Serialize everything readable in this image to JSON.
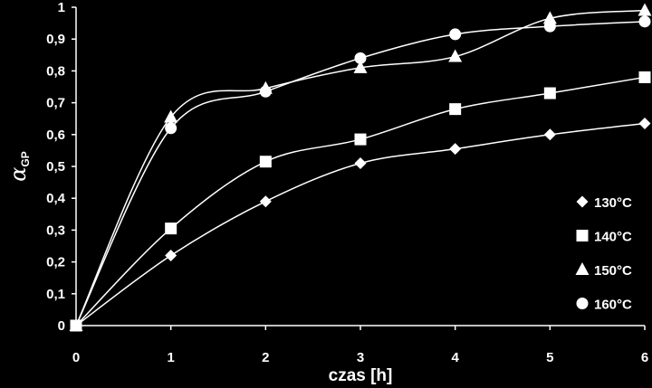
{
  "chart_data": {
    "type": "scatter",
    "xlabel": "czas [h]",
    "ylabel": "α",
    "ylabel_sub": "GP",
    "x_ticks": [
      "0",
      "1",
      "2",
      "3",
      "4",
      "5",
      "6"
    ],
    "y_ticks": [
      "0",
      "0,1",
      "0,2",
      "0,3",
      "0,4",
      "0,5",
      "0,6",
      "0,7",
      "0,8",
      "0,9",
      "1"
    ],
    "xlim": [
      0,
      6
    ],
    "ylim": [
      0,
      1
    ],
    "grid": false,
    "legend_position": "right",
    "colors": {
      "background": "#000000",
      "foreground": "#ffffff"
    },
    "series": [
      {
        "name": "130°C",
        "marker": "diamond",
        "x": [
          0,
          1,
          2,
          3,
          4,
          5,
          6
        ],
        "y": [
          0,
          0.22,
          0.39,
          0.51,
          0.555,
          0.6,
          0.635
        ]
      },
      {
        "name": "140°C",
        "marker": "square",
        "x": [
          0,
          1,
          2,
          3,
          4,
          5,
          6
        ],
        "y": [
          0,
          0.305,
          0.515,
          0.585,
          0.68,
          0.73,
          0.78
        ]
      },
      {
        "name": "150°C",
        "marker": "triangle",
        "x": [
          0,
          1,
          2,
          3,
          4,
          5,
          6
        ],
        "y": [
          0,
          0.655,
          0.745,
          0.81,
          0.845,
          0.965,
          0.99
        ]
      },
      {
        "name": "160°C",
        "marker": "circle",
        "x": [
          0,
          1,
          2,
          3,
          4,
          5,
          6
        ],
        "y": [
          0,
          0.62,
          0.735,
          0.84,
          0.915,
          0.94,
          0.955
        ]
      }
    ]
  }
}
